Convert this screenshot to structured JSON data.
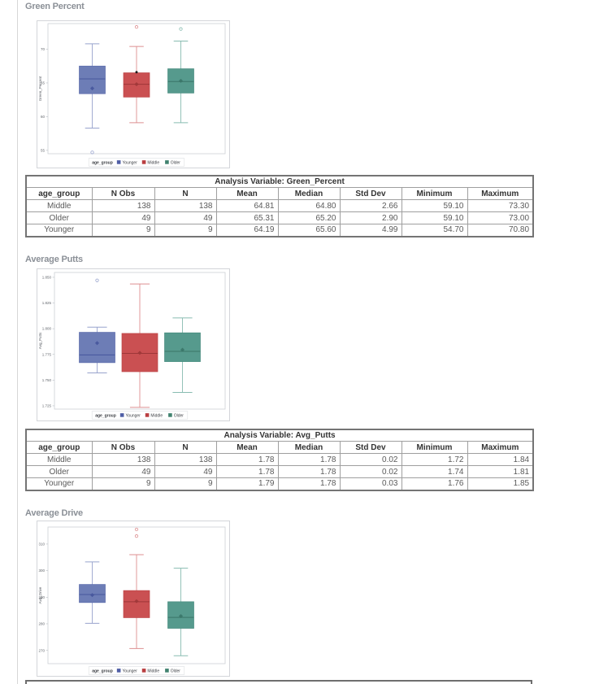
{
  "page": {
    "background": "#ffffff"
  },
  "palette": {
    "Younger": {
      "fill": "#6d7db6",
      "edge": "#5a6aaa",
      "dark": "#46569c",
      "light": "#98a3cd",
      "swatch": "#4f5ea6"
    },
    "Middle": {
      "fill": "#ca5052",
      "edge": "#bc4345",
      "dark": "#9e3739",
      "light": "#dd8f90",
      "swatch": "#b93e40"
    },
    "Older": {
      "fill": "#569a8d",
      "edge": "#478b7e",
      "dark": "#3a7568",
      "light": "#88bcb1",
      "swatch": "#40826f"
    }
  },
  "legend": {
    "title": "age_group",
    "entries": [
      "Younger",
      "Middle",
      "Older"
    ]
  },
  "sections": [
    {
      "heading": "Green Percent",
      "table": {
        "caption": "Analysis Variable: Green_Percent",
        "columns": [
          "age_group",
          "N Obs",
          "N",
          "Mean",
          "Median",
          "Std Dev",
          "Minimum",
          "Maximum"
        ],
        "rows": [
          [
            "Middle",
            "138",
            "138",
            "64.81",
            "64.80",
            "2.66",
            "59.10",
            "73.30"
          ],
          [
            "Older",
            "49",
            "49",
            "65.31",
            "65.20",
            "2.90",
            "59.10",
            "73.00"
          ],
          [
            "Younger",
            "9",
            "9",
            "64.19",
            "65.60",
            "4.99",
            "54.70",
            "70.80"
          ]
        ]
      }
    },
    {
      "heading": "Average Putts",
      "table": {
        "caption": "Analysis Variable: Avg_Putts",
        "columns": [
          "age_group",
          "N Obs",
          "N",
          "Mean",
          "Median",
          "Std Dev",
          "Minimum",
          "Maximum"
        ],
        "rows": [
          [
            "Middle",
            "138",
            "138",
            "1.78",
            "1.78",
            "0.02",
            "1.72",
            "1.84"
          ],
          [
            "Older",
            "49",
            "49",
            "1.78",
            "1.78",
            "0.02",
            "1.74",
            "1.81"
          ],
          [
            "Younger",
            "9",
            "9",
            "1.79",
            "1.78",
            "0.03",
            "1.76",
            "1.85"
          ]
        ]
      }
    },
    {
      "heading": "Average Drive"
    }
  ],
  "chart_data": [
    {
      "type": "box",
      "title": "Green Percent",
      "xlabel": "age_group",
      "ylabel": "Green_Percent",
      "ylim": [
        54.5,
        73.8
      ],
      "yticks": [
        {
          "v": 70,
          "label": "70"
        },
        {
          "v": 65,
          "label": "65"
        },
        {
          "v": 60,
          "label": "60"
        },
        {
          "v": 55,
          "label": "55"
        }
      ],
      "groups": [
        {
          "name": "Younger",
          "whisker_low": 58.3,
          "q1": 63.4,
          "median": 65.6,
          "q3": 67.5,
          "whisker_high": 70.8,
          "mean": 64.19,
          "outliers": [
            54.7
          ]
        },
        {
          "name": "Middle",
          "whisker_low": 59.1,
          "q1": 62.9,
          "median": 64.8,
          "q3": 66.5,
          "whisker_high": 70.4,
          "mean": 64.81,
          "outliers": [
            73.3
          ],
          "black_dot": 66.6
        },
        {
          "name": "Older",
          "whisker_low": 59.1,
          "q1": 63.5,
          "median": 65.2,
          "q3": 67.1,
          "whisker_high": 71.2,
          "mean": 65.31,
          "outliers": [
            73.0
          ]
        }
      ]
    },
    {
      "type": "box",
      "title": "Average Putts",
      "xlabel": "age_group",
      "ylabel": "Avg_Putts",
      "ylim": [
        1.7218,
        1.8547
      ],
      "yticks": [
        {
          "v": 1.85,
          "label": "1.850"
        },
        {
          "v": 1.825,
          "label": "1.825"
        },
        {
          "v": 1.8,
          "label": "1.800"
        },
        {
          "v": 1.775,
          "label": "1.775"
        },
        {
          "v": 1.75,
          "label": "1.750"
        },
        {
          "v": 1.725,
          "label": "1.725"
        }
      ],
      "groups": [
        {
          "name": "Younger",
          "whisker_low": 1.757,
          "q1": 1.767,
          "median": 1.7745,
          "q3": 1.7965,
          "whisker_high": 1.8015,
          "mean": 1.786,
          "outliers": [
            1.847
          ]
        },
        {
          "name": "Middle",
          "whisker_low": 1.7235,
          "q1": 1.7582,
          "median": 1.776,
          "q3": 1.7954,
          "whisker_high": 1.8435,
          "mean": 1.7765,
          "outliers": []
        },
        {
          "name": "Older",
          "whisker_low": 1.738,
          "q1": 1.768,
          "median": 1.778,
          "q3": 1.796,
          "whisker_high": 1.8105,
          "mean": 1.7795,
          "outliers": []
        }
      ]
    },
    {
      "type": "box",
      "title": "Average Drive",
      "xlabel": "age_group",
      "ylabel": "Avg_Drive",
      "ylim": [
        265.0,
        316.4
      ],
      "yticks": [
        {
          "v": 310,
          "label": "310"
        },
        {
          "v": 300,
          "label": "300"
        },
        {
          "v": 290,
          "label": "290"
        },
        {
          "v": 280,
          "label": "280"
        },
        {
          "v": 270,
          "label": "270"
        }
      ],
      "groups": [
        {
          "name": "Younger",
          "whisker_low": 280.2,
          "q1": 288.0,
          "median": 291.0,
          "q3": 294.8,
          "whisker_high": 303.3,
          "mean": 290.8,
          "outliers": []
        },
        {
          "name": "Middle",
          "whisker_low": 270.7,
          "q1": 282.3,
          "median": 288.3,
          "q3": 292.5,
          "whisker_high": 306.0,
          "mean": 288.5,
          "outliers": [
            313.0,
            315.5
          ]
        },
        {
          "name": "Older",
          "whisker_low": 268.0,
          "q1": 278.3,
          "median": 282.4,
          "q3": 288.3,
          "whisker_high": 300.9,
          "mean": 282.9,
          "outliers": []
        }
      ]
    }
  ]
}
